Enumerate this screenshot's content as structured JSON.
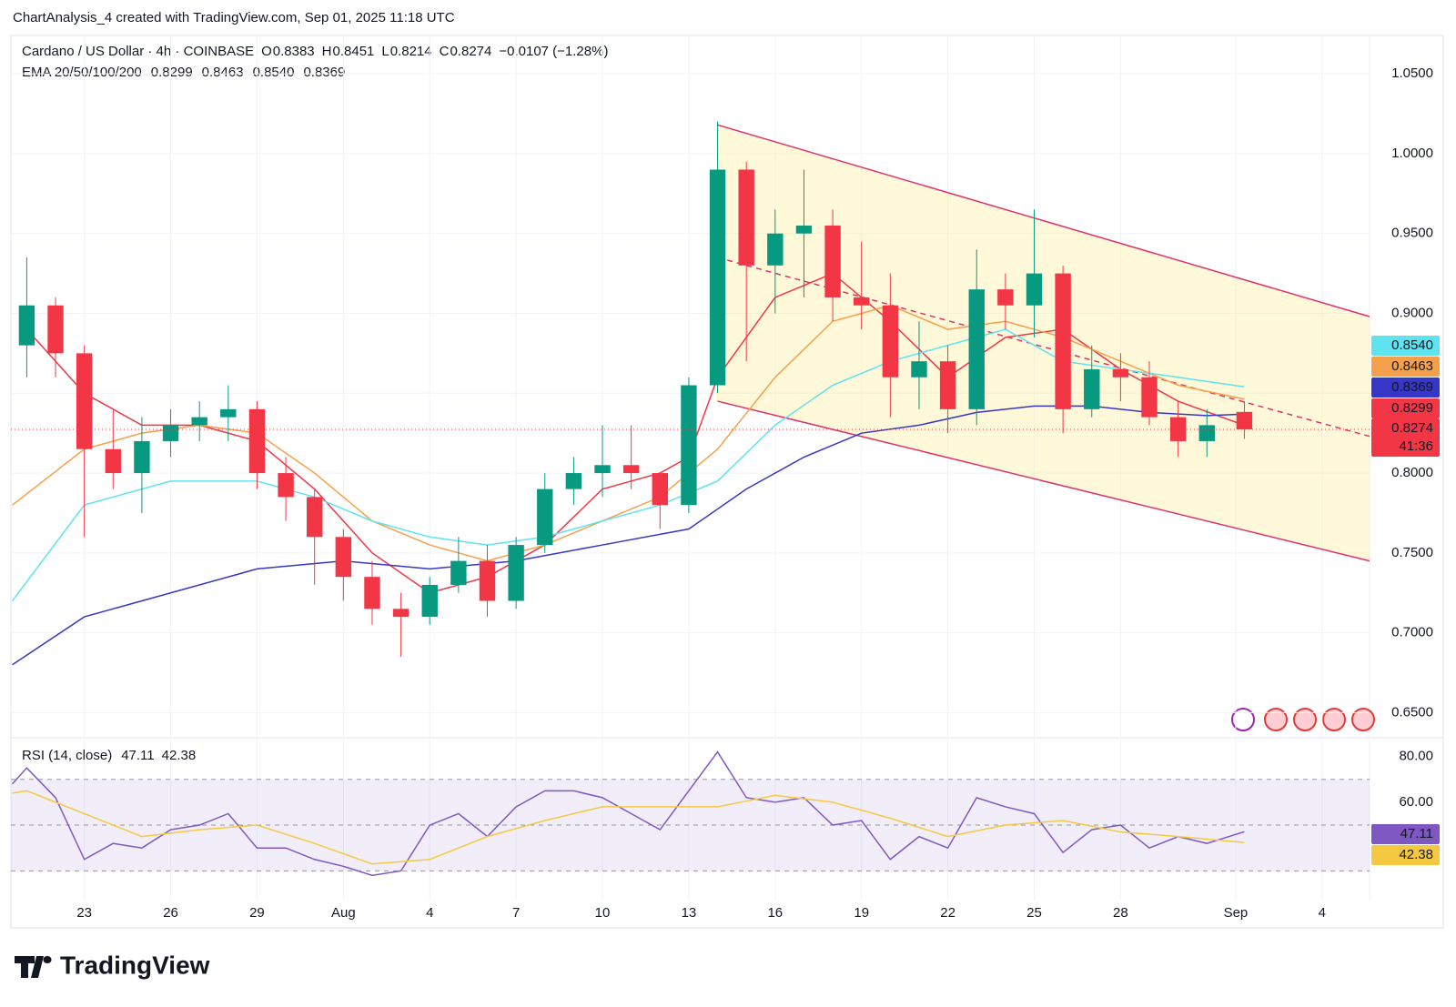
{
  "header": {
    "caption": "ChartAnalysis_4 created with TradingView.com, Sep 01, 2025 11:18 UTC",
    "symbol": "Cardano / US Dollar · 4h · COINBASE",
    "ohlc": [
      {
        "key": "O",
        "value": "0.8383"
      },
      {
        "key": "H",
        "value": "0.8451"
      },
      {
        "key": "L",
        "value": "0.8214"
      },
      {
        "key": "C",
        "value": "0.8274"
      }
    ],
    "change": "−0.0107 (−1.28%)",
    "ema_label": "EMA 20/50/100/200",
    "ema_values": [
      "0.8299",
      "0.8463",
      "0.8540",
      "0.8369"
    ],
    "countdown": "41:36"
  },
  "footer": {
    "brand": "TradingView"
  },
  "chart_data": [
    {
      "type": "candlestick",
      "up_color": "#089981",
      "down_color": "#f23645",
      "xlim": [
        20.45,
        67.65
      ],
      "ylim": [
        0.636,
        1.074
      ],
      "yticks": [
        {
          "value": 0.65,
          "label": "0.6500"
        },
        {
          "value": 0.7,
          "label": "0.7000"
        },
        {
          "value": 0.75,
          "label": "0.7500"
        },
        {
          "value": 0.8,
          "label": "0.8000"
        },
        {
          "value": 0.85,
          "label": "0.8500"
        },
        {
          "value": 0.9,
          "label": "0.9000"
        },
        {
          "value": 0.95,
          "label": "0.9500"
        },
        {
          "value": 1.0,
          "label": "1.0000"
        },
        {
          "value": 1.05,
          "label": "1.0500"
        }
      ],
      "grid": true,
      "x": [
        21,
        22,
        23,
        24,
        25,
        26,
        27,
        28,
        29,
        30,
        31,
        32,
        33,
        34,
        35,
        36,
        37,
        38,
        39,
        40,
        41,
        42,
        43,
        44,
        45,
        46,
        47,
        48,
        49,
        50,
        51,
        52,
        53,
        54,
        55,
        56,
        57,
        58,
        59,
        60,
        61,
        62,
        63.3
      ],
      "open": [
        0.88,
        0.905,
        0.875,
        0.815,
        0.8,
        0.82,
        0.83,
        0.835,
        0.84,
        0.8,
        0.785,
        0.76,
        0.735,
        0.715,
        0.71,
        0.73,
        0.745,
        0.72,
        0.755,
        0.79,
        0.8,
        0.805,
        0.8,
        0.78,
        0.855,
        0.99,
        0.93,
        0.95,
        0.955,
        0.91,
        0.905,
        0.86,
        0.87,
        0.84,
        0.915,
        0.905,
        0.925,
        0.84,
        0.865,
        0.86,
        0.835,
        0.82,
        0.8383
      ],
      "high": [
        0.935,
        0.91,
        0.88,
        0.84,
        0.835,
        0.84,
        0.845,
        0.855,
        0.845,
        0.81,
        0.79,
        0.765,
        0.745,
        0.725,
        0.735,
        0.76,
        0.755,
        0.76,
        0.8,
        0.81,
        0.83,
        0.83,
        0.8,
        0.86,
        1.02,
        0.995,
        0.965,
        0.99,
        0.965,
        0.945,
        0.925,
        0.895,
        0.88,
        0.94,
        0.925,
        0.965,
        0.93,
        0.88,
        0.875,
        0.87,
        0.845,
        0.84,
        0.8451
      ],
      "low": [
        0.86,
        0.86,
        0.76,
        0.79,
        0.775,
        0.81,
        0.82,
        0.82,
        0.79,
        0.77,
        0.73,
        0.72,
        0.705,
        0.685,
        0.705,
        0.725,
        0.71,
        0.715,
        0.75,
        0.78,
        0.785,
        0.79,
        0.765,
        0.775,
        0.85,
        0.87,
        0.9,
        0.91,
        0.895,
        0.89,
        0.835,
        0.84,
        0.825,
        0.83,
        0.89,
        0.885,
        0.825,
        0.835,
        0.845,
        0.83,
        0.81,
        0.81,
        0.8214
      ],
      "close": [
        0.905,
        0.875,
        0.815,
        0.8,
        0.82,
        0.83,
        0.835,
        0.84,
        0.8,
        0.785,
        0.76,
        0.735,
        0.715,
        0.71,
        0.73,
        0.745,
        0.72,
        0.755,
        0.79,
        0.8,
        0.805,
        0.8,
        0.78,
        0.855,
        0.99,
        0.93,
        0.95,
        0.955,
        0.91,
        0.905,
        0.86,
        0.87,
        0.84,
        0.915,
        0.905,
        0.925,
        0.84,
        0.865,
        0.86,
        0.835,
        0.82,
        0.83,
        0.8274
      ],
      "series": [
        {
          "color": "#f23645",
          "x": [
            21,
            23,
            25,
            27,
            29,
            31,
            33,
            35,
            37,
            39,
            41,
            43,
            44,
            45,
            47,
            49,
            51,
            53,
            55,
            57,
            59,
            61,
            63.3
          ],
          "values": [
            0.89,
            0.85,
            0.83,
            0.83,
            0.82,
            0.79,
            0.75,
            0.725,
            0.735,
            0.755,
            0.79,
            0.8,
            0.81,
            0.86,
            0.91,
            0.925,
            0.895,
            0.86,
            0.885,
            0.89,
            0.865,
            0.845,
            0.8299
          ]
        },
        {
          "color": "#f7a04b",
          "x": [
            20.5,
            23,
            25,
            27,
            29,
            31,
            33,
            35,
            37,
            39,
            41,
            43,
            45,
            47,
            49,
            51,
            53,
            55,
            57,
            59,
            61,
            63.3
          ],
          "values": [
            0.78,
            0.815,
            0.825,
            0.83,
            0.825,
            0.8,
            0.77,
            0.755,
            0.745,
            0.755,
            0.77,
            0.785,
            0.815,
            0.86,
            0.895,
            0.905,
            0.89,
            0.895,
            0.885,
            0.87,
            0.855,
            0.8463
          ]
        },
        {
          "color": "#5ee3ef",
          "x": [
            20.5,
            23,
            26,
            29,
            31,
            33,
            35,
            37,
            39,
            41,
            43,
            45,
            47,
            49,
            51,
            53,
            55,
            57,
            59,
            61,
            63.3
          ],
          "values": [
            0.72,
            0.78,
            0.795,
            0.795,
            0.785,
            0.77,
            0.76,
            0.755,
            0.76,
            0.77,
            0.78,
            0.795,
            0.83,
            0.855,
            0.87,
            0.88,
            0.89,
            0.87,
            0.865,
            0.86,
            0.854
          ]
        },
        {
          "color": "#3636c8",
          "x": [
            20.5,
            23,
            26,
            29,
            32,
            35,
            38,
            41,
            44,
            46,
            48,
            50,
            52,
            54,
            56,
            58,
            60,
            62,
            63.3
          ],
          "values": [
            0.68,
            0.71,
            0.725,
            0.74,
            0.745,
            0.74,
            0.745,
            0.755,
            0.765,
            0.79,
            0.81,
            0.825,
            0.83,
            0.838,
            0.842,
            0.842,
            0.838,
            0.836,
            0.8369
          ]
        }
      ],
      "channel": {
        "color": "#e0316b",
        "x": [
          45,
          67.65
        ],
        "upper": [
          1.018,
          0.898
        ],
        "middle": [
          0.935,
          0.823
        ],
        "lower": [
          0.845,
          0.745
        ]
      }
    },
    {
      "type": "line",
      "title": "RSI (14, close)",
      "value_labels": [
        "47.11",
        "42.38"
      ],
      "xlim": [
        20.45,
        67.65
      ],
      "ylim": [
        19,
        87
      ],
      "yticks": [
        {
          "value": 80,
          "label": "80.00"
        },
        {
          "value": 60,
          "label": "60.00"
        }
      ],
      "levels": [
        30,
        50,
        70
      ],
      "xticks": [
        {
          "value": 23,
          "label": "23"
        },
        {
          "value": 26,
          "label": "26"
        },
        {
          "value": 29,
          "label": "29"
        },
        {
          "value": 32,
          "label": "Aug"
        },
        {
          "value": 35,
          "label": "4"
        },
        {
          "value": 38,
          "label": "7"
        },
        {
          "value": 41,
          "label": "10"
        },
        {
          "value": 44,
          "label": "13"
        },
        {
          "value": 47,
          "label": "16"
        },
        {
          "value": 50,
          "label": "19"
        },
        {
          "value": 53,
          "label": "22"
        },
        {
          "value": 56,
          "label": "25"
        },
        {
          "value": 59,
          "label": "28"
        },
        {
          "value": 63,
          "label": "Sep"
        },
        {
          "value": 66,
          "label": "4"
        }
      ],
      "series": [
        {
          "color": "#7e57c2",
          "x": [
            20.5,
            21,
            22,
            23,
            24,
            25,
            26,
            27,
            28,
            29,
            30,
            31,
            32,
            33,
            34,
            35,
            36,
            37,
            38,
            39,
            40,
            41,
            42,
            43,
            44,
            45,
            46,
            47,
            48,
            49,
            50,
            51,
            52,
            53,
            54,
            55,
            56,
            57,
            58,
            59,
            60,
            61,
            62,
            63.3
          ],
          "values": [
            68,
            75,
            62,
            35,
            42,
            40,
            48,
            50,
            55,
            40,
            40,
            35,
            32,
            28,
            30,
            50,
            55,
            45,
            58,
            65,
            65,
            62,
            55,
            48,
            65,
            82,
            62,
            60,
            62,
            50,
            52,
            35,
            45,
            40,
            62,
            58,
            55,
            38,
            48,
            50,
            40,
            45,
            42,
            47.11
          ]
        },
        {
          "color": "#f5c842",
          "x": [
            20.5,
            21,
            23,
            25,
            27,
            29,
            31,
            33,
            35,
            37,
            39,
            41,
            43,
            45,
            47,
            49,
            51,
            53,
            55,
            57,
            59,
            61,
            63.3
          ],
          "values": [
            64,
            65,
            55,
            45,
            48,
            50,
            42,
            33,
            35,
            45,
            52,
            58,
            58,
            58,
            63,
            60,
            53,
            45,
            50,
            52,
            47,
            45,
            42.38
          ]
        }
      ]
    }
  ]
}
